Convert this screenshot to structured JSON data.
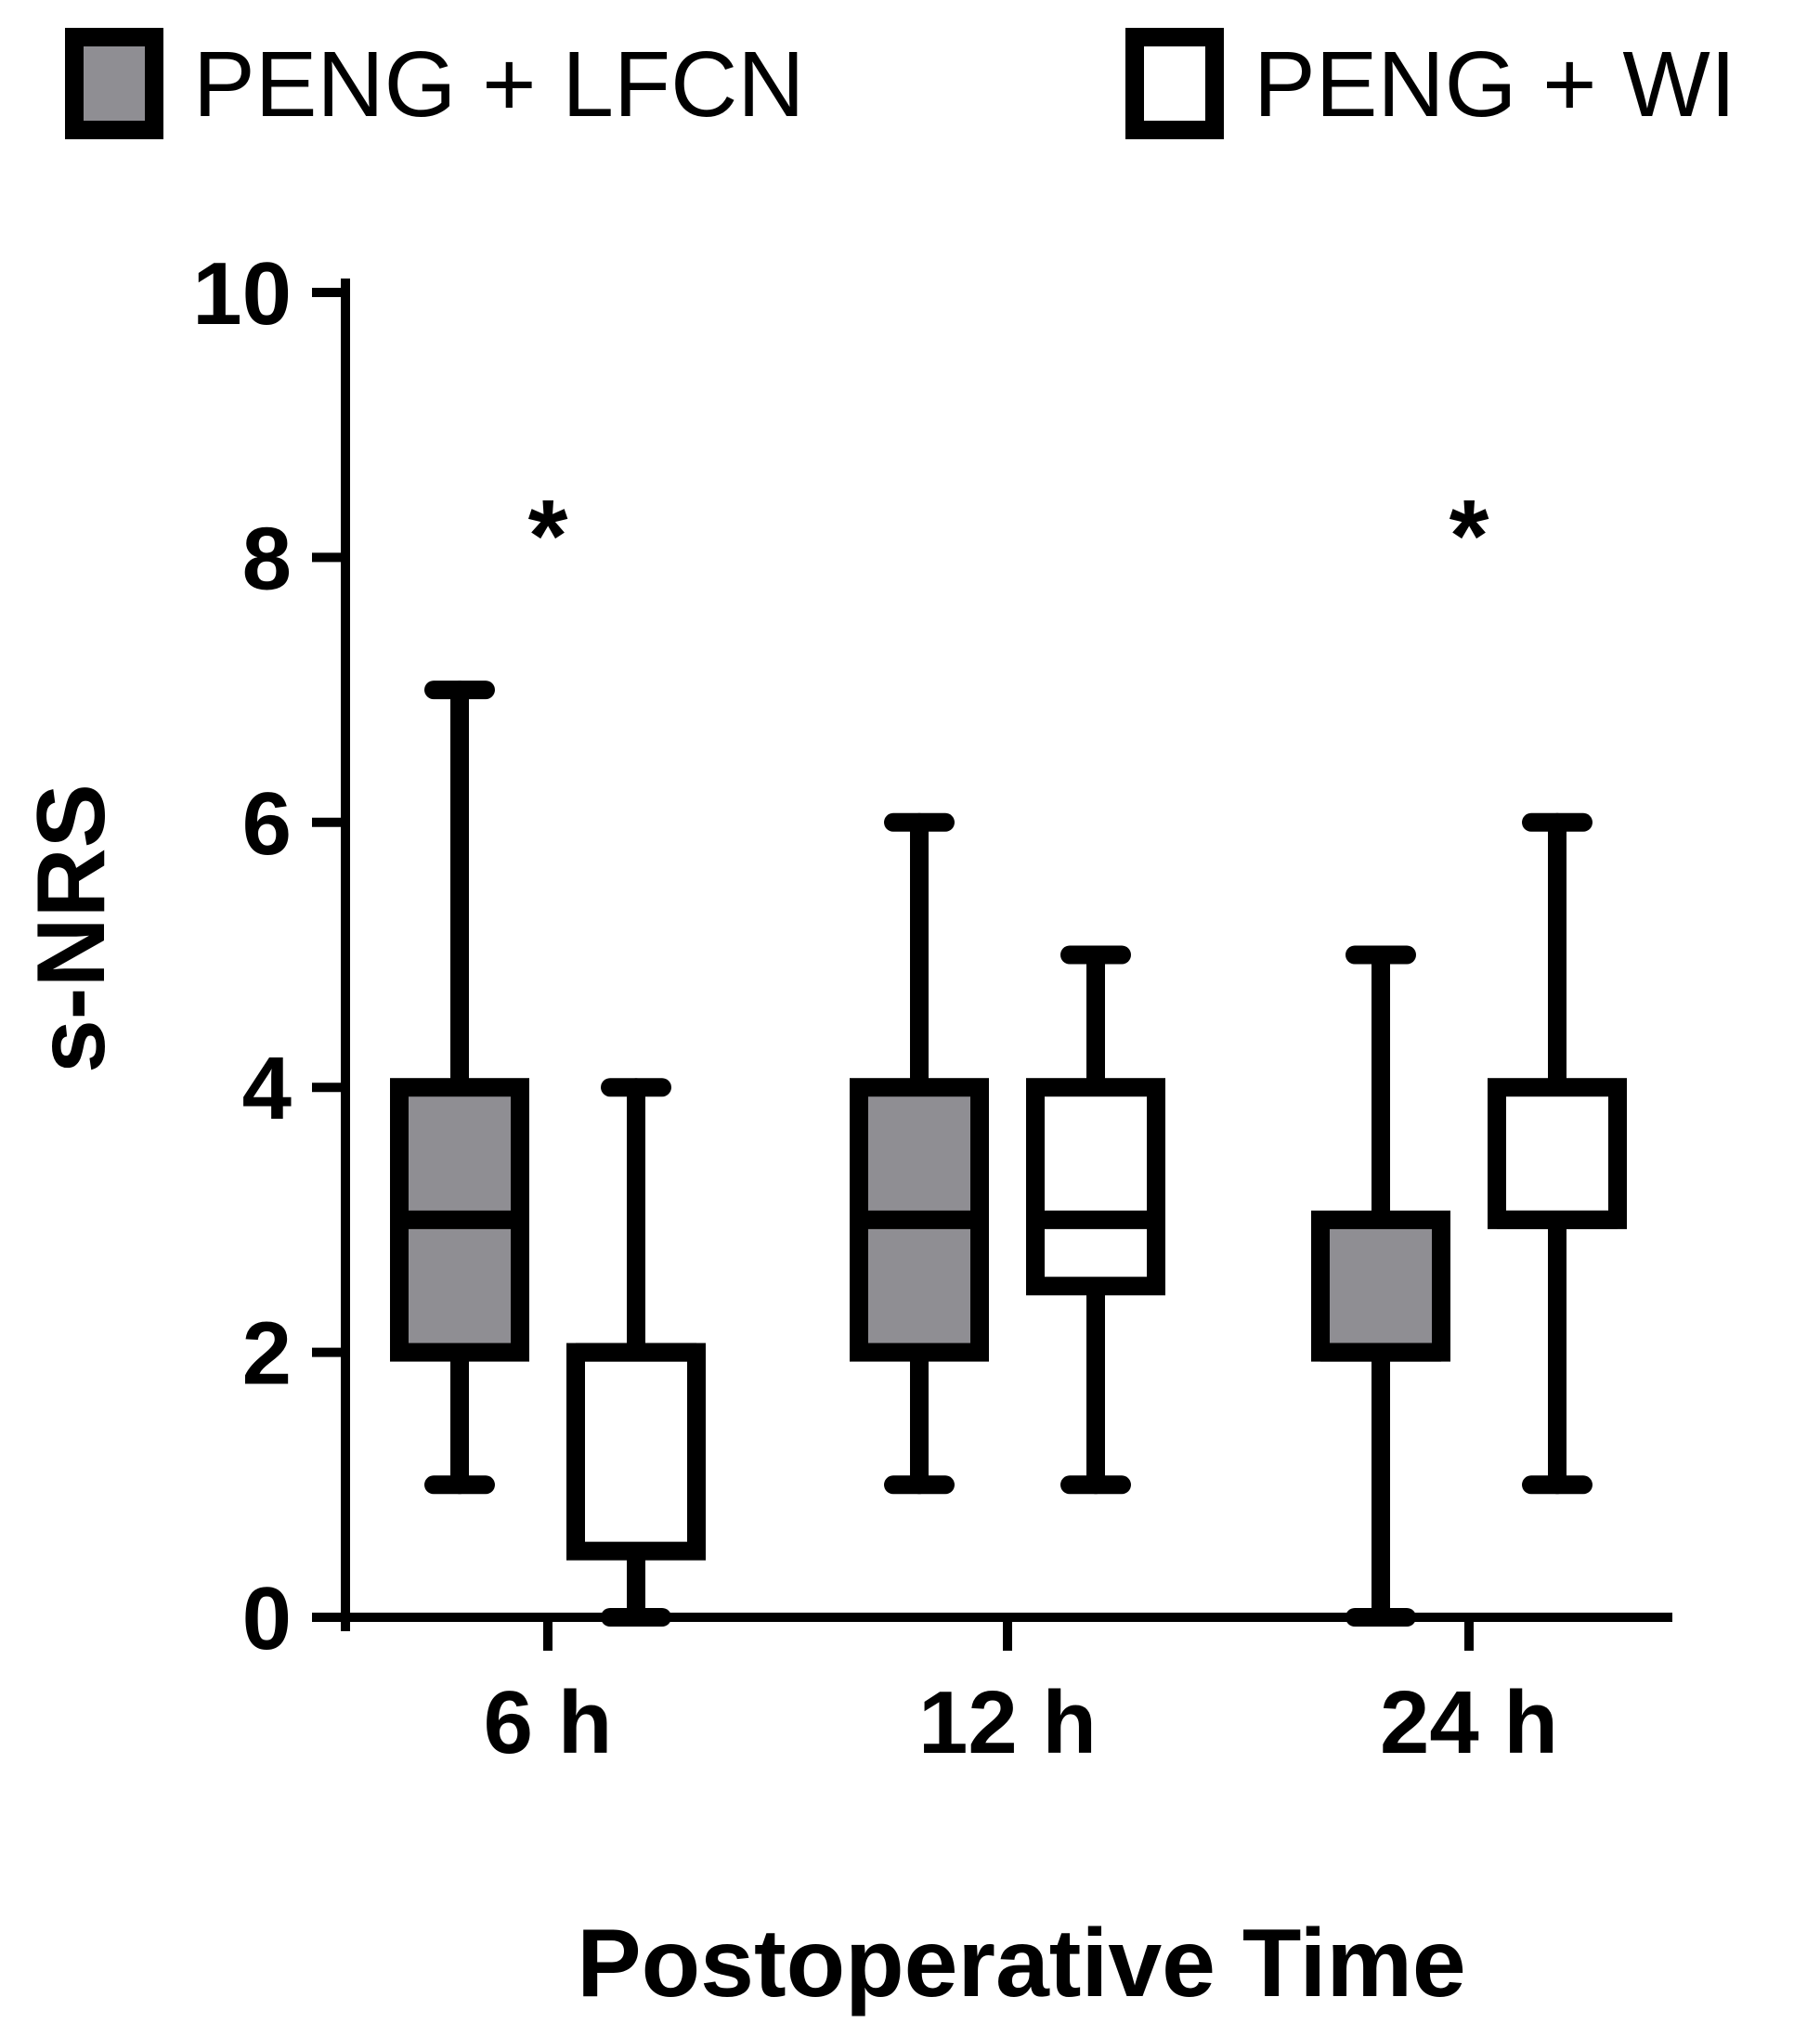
{
  "chart_data": {
    "type": "box",
    "x_label": "Postoperative Time",
    "y_label": "s-NRS",
    "y_range": [
      0,
      10
    ],
    "y_ticks": [
      0,
      2,
      4,
      6,
      8,
      10
    ],
    "categories": [
      "6 h",
      "12 h",
      "24 h"
    ],
    "legend_position": "top",
    "significance_markers": [
      "*",
      "",
      "*"
    ],
    "series": [
      {
        "name": "PENG + LFCN",
        "fill_color": "#8f8e93",
        "boxes": [
          {
            "category": "6 h",
            "min": 1,
            "q1": 2,
            "median": 3,
            "q3": 4,
            "max": 7
          },
          {
            "category": "12 h",
            "min": 1,
            "q1": 2,
            "median": 3,
            "q3": 4,
            "max": 6
          },
          {
            "category": "24 h",
            "min": 0,
            "q1": 2,
            "median": 2,
            "q3": 3,
            "max": 5
          }
        ]
      },
      {
        "name": "PENG + WI",
        "fill_color": "#ffffff",
        "boxes": [
          {
            "category": "6 h",
            "min": 0,
            "q1": 0.5,
            "median": 2,
            "q3": 2,
            "max": 4
          },
          {
            "category": "12 h",
            "min": 1,
            "q1": 2.5,
            "median": 3,
            "q3": 4,
            "max": 5
          },
          {
            "category": "24 h",
            "min": 1,
            "q1": 3,
            "median": 3,
            "q3": 4,
            "max": 6
          }
        ]
      }
    ]
  }
}
